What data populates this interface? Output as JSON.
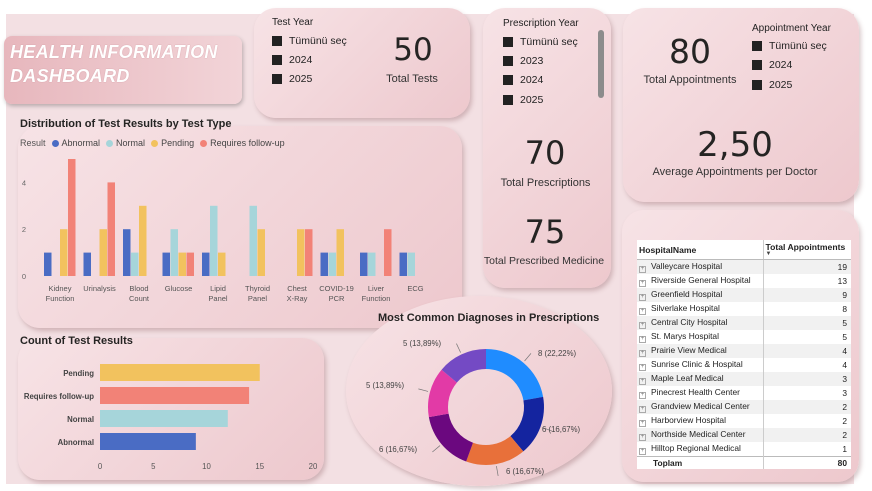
{
  "dashboard_title": "HEALTH INFORMATION DASHBOARD",
  "test_year_slicer": {
    "title": "Test Year",
    "options": [
      "Tümünü seç",
      "2024",
      "2025"
    ]
  },
  "prescription_year_slicer": {
    "title": "Prescription Year",
    "options": [
      "Tümünü seç",
      "2023",
      "2024",
      "2025"
    ]
  },
  "appointment_year_slicer": {
    "title": "Appointment Year",
    "options": [
      "Tümünü seç",
      "2024",
      "2025"
    ]
  },
  "kpis": {
    "total_tests": {
      "value": "50",
      "label": "Total Tests"
    },
    "total_prescriptions": {
      "value": "70",
      "label": "Total Prescriptions"
    },
    "total_prescribed_medicine": {
      "value": "75",
      "label": "Total Prescribed Medicine"
    },
    "total_appointments": {
      "value": "80",
      "label": "Total Appointments"
    },
    "avg_appointments": {
      "value": "2,50",
      "label": "Average Appointments per Doctor"
    }
  },
  "colors": {
    "abnormal": "#4a6cc4",
    "normal": "#a6d5da",
    "pending": "#f2c25e",
    "followup": "#f28277"
  },
  "chart_data": [
    {
      "type": "bar",
      "title": "Distribution of Test Results by Test Type",
      "legend_title": "Result",
      "legend_position": "top-left",
      "categories": [
        [
          "Kidney",
          "Function"
        ],
        [
          "Urinalysis"
        ],
        [
          "Blood",
          "Count"
        ],
        [
          "Glucose"
        ],
        [
          "Lipid",
          "Panel"
        ],
        [
          "Thyroid",
          "Panel"
        ],
        [
          "Chest",
          "X-Ray"
        ],
        [
          "COVID-19",
          "PCR"
        ],
        [
          "Liver",
          "Function"
        ],
        [
          "ECG"
        ]
      ],
      "series": [
        {
          "name": "Abnormal",
          "values": [
            1,
            1,
            2,
            1,
            1,
            0,
            0,
            1,
            1,
            1
          ]
        },
        {
          "name": "Normal",
          "values": [
            0,
            0,
            1,
            2,
            3,
            3,
            0,
            1,
            1,
            1
          ]
        },
        {
          "name": "Pending",
          "values": [
            2,
            2,
            3,
            1,
            1,
            2,
            2,
            2,
            0,
            0
          ]
        },
        {
          "name": "Requires follow-up",
          "values": [
            5,
            4,
            0,
            1,
            0,
            0,
            2,
            0,
            2,
            0
          ]
        }
      ],
      "y_ticks": [
        "0",
        "2",
        "4"
      ],
      "ylim": [
        0,
        5
      ],
      "grid": false
    },
    {
      "type": "bar",
      "orientation": "horizontal",
      "title": "Count of Test Results",
      "categories": [
        "Pending",
        "Requires follow-up",
        "Normal",
        "Abnormal"
      ],
      "values": [
        15,
        14,
        12,
        9
      ],
      "x_ticks": [
        "0",
        "5",
        "10",
        "15",
        "20"
      ],
      "xlim": [
        0,
        20
      ]
    },
    {
      "type": "pie",
      "variant": "donut",
      "title": "Most Common Diagnoses in Prescriptions",
      "slices": [
        {
          "value": 8,
          "label": "8 (22,22%)",
          "color": "#1f8cff"
        },
        {
          "value": 6,
          "label": "6 (16,67%)",
          "color": "#14249f"
        },
        {
          "value": 6,
          "label": "6 (16,67%)",
          "color": "#e8703a"
        },
        {
          "value": 6,
          "label": "6 (16,67%)",
          "color": "#6b087f"
        },
        {
          "value": 5,
          "label": "5 (13,89%)",
          "color": "#e23aa6"
        },
        {
          "value": 5,
          "label": "5 (13,89%)",
          "color": "#744ac4"
        }
      ]
    }
  ],
  "hospital_table": {
    "headers": [
      "HospitalName",
      "Total Appointments"
    ],
    "rows": [
      [
        "Valleycare Hospital",
        "19"
      ],
      [
        "Riverside General Hospital",
        "13"
      ],
      [
        "Greenfield Hospital",
        "9"
      ],
      [
        "Silverlake Hospital",
        "8"
      ],
      [
        "Central City Hospital",
        "5"
      ],
      [
        "St. Marys Hospital",
        "5"
      ],
      [
        "Prairie View Medical",
        "4"
      ],
      [
        "Sunrise Clinic & Hospital",
        "4"
      ],
      [
        "Maple Leaf Medical",
        "3"
      ],
      [
        "Pinecrest Health Center",
        "3"
      ],
      [
        "Grandview Medical Center",
        "2"
      ],
      [
        "Harborview Hospital",
        "2"
      ],
      [
        "Northside Medical Center",
        "2"
      ],
      [
        "Hilltop Regional Medical",
        "1"
      ]
    ],
    "total_label": "Toplam",
    "total_value": "80"
  }
}
